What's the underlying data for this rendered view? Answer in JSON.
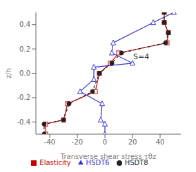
{
  "chart_data": {
    "type": "line",
    "xlabel": "Transverse shear stress τθz",
    "ylabel": "z/h",
    "xlim": [
      -50,
      55
    ],
    "ylim": [
      -0.5,
      0.5
    ],
    "xticks": [
      -40,
      -20,
      0,
      20,
      40
    ],
    "yticks": [
      -0.4,
      -0.2,
      {
        "value": 0,
        "label": "0.0"
      },
      0.2,
      0.4
    ],
    "grid": false,
    "legend": "bottom",
    "annotations": [
      {
        "text": "S=4",
        "x": 18,
        "y": 0.14
      }
    ],
    "series": [
      {
        "name": "Elasticity",
        "color": "#cc0000",
        "marker": "square",
        "line_style": "solid",
        "x": [
          -43,
          -43,
          -30,
          -27,
          -7,
          -4,
          4,
          10,
          45,
          46,
          43,
          43
        ],
        "values": [
          -0.5,
          -0.417,
          -0.383,
          -0.25,
          -0.15,
          0.0,
          0.083,
          0.167,
          0.25,
          0.333,
          0.417,
          0.5
        ]
      },
      {
        "name": "HSDT8",
        "color": "#222222",
        "marker": "circle",
        "line_style": "dashed",
        "x": [
          -44,
          -44,
          -30,
          -26,
          -9,
          -4,
          5,
          12,
          44,
          46,
          43,
          43
        ],
        "values": [
          -0.5,
          -0.417,
          -0.383,
          -0.25,
          -0.15,
          0.0,
          0.083,
          0.167,
          0.25,
          0.333,
          0.417,
          0.5
        ]
      },
      {
        "name": "HSDT6",
        "color": "#3333cc",
        "marker": "triangle",
        "line_style": "solid",
        "x": [
          0,
          0,
          -3,
          -2,
          -18,
          -8,
          -8,
          20,
          5,
          6,
          35,
          50
        ],
        "values": [
          -0.5,
          -0.417,
          -0.383,
          -0.25,
          -0.15,
          -0.05,
          0.05,
          0.083,
          0.167,
          0.25,
          0.417,
          0.5
        ]
      }
    ]
  }
}
